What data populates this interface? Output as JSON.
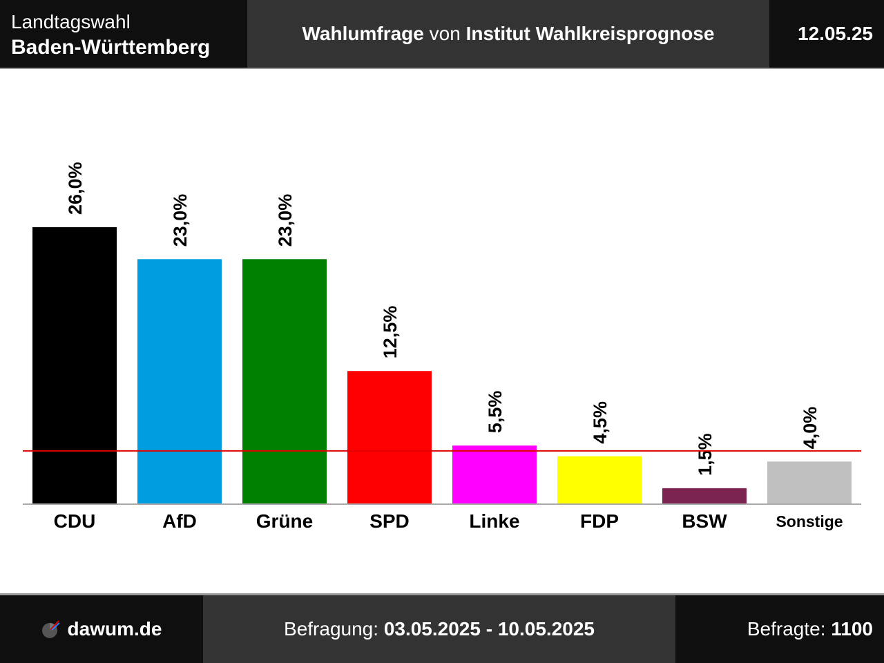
{
  "header": {
    "election_line1": "Landtagswahl",
    "election_line2": "Baden-Württemberg",
    "poll_bold1": "Wahlumfrage",
    "poll_mid": " von ",
    "poll_bold2": "Institut Wahlkreisprognose",
    "date": "12.05.25"
  },
  "footer": {
    "site": "dawum.de",
    "survey_label": "Befragung: ",
    "survey_period": "03.05.2025 - 10.05.2025",
    "respondents_label": "Befragte: ",
    "respondents": "1100"
  },
  "colors": {
    "threshold_line": "#e00000",
    "axis": "#aaaaaa"
  },
  "chart_data": {
    "type": "bar",
    "categories": [
      "CDU",
      "AfD",
      "Grüne",
      "SPD",
      "Linke",
      "FDP",
      "BSW",
      "Sonstige"
    ],
    "values": [
      26.0,
      23.0,
      23.0,
      12.5,
      5.5,
      4.5,
      1.5,
      4.0
    ],
    "value_labels": [
      "26,0%",
      "23,0%",
      "23,0%",
      "12,5%",
      "5,5%",
      "4,5%",
      "1,5%",
      "4,0%"
    ],
    "colors": [
      "#000000",
      "#009ee0",
      "#008000",
      "#ff0000",
      "#ff00ff",
      "#ffff00",
      "#7b2450",
      "#c0c0c0"
    ],
    "threshold": 5,
    "ylim": [
      0,
      26.0
    ],
    "grid": false,
    "legend": "none"
  }
}
